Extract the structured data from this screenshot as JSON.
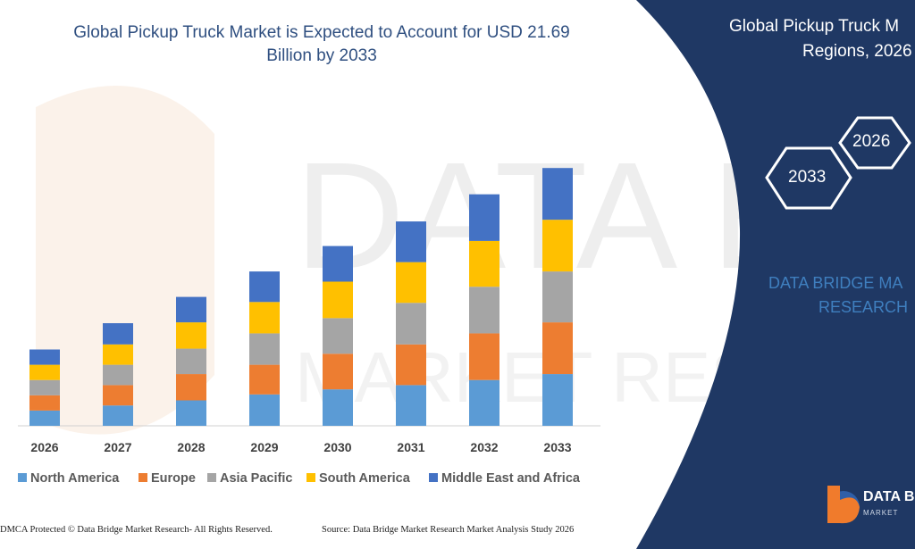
{
  "title": "Global Pickup Truck Market is Expected to Account for USD 21.69 Billion by 2033",
  "title_line1": "Global Pickup Truck Market is Expected to Account for USD 21.69",
  "title_line2": "Billion by 2033",
  "side_panel": {
    "title_line1": "Global Pickup Truck M",
    "title_line2": "Regions, 2026",
    "hex_year_a": "2026",
    "hex_year_b": "2033",
    "brand_line1": "DATA BRIDGE MA",
    "brand_line2": "RESEARCH",
    "logo_text": "DATA B",
    "logo_sub": "MARKET"
  },
  "footer": {
    "copyright": "DMCA Protected © Data Bridge Market Research-  All Rights Reserved.",
    "source": "Source: Data Bridge Market Research  Market Analysis Study 2026"
  },
  "colors": {
    "North America": "#5b9bd5",
    "Europe": "#ed7d31",
    "Asia Pacific": "#a5a5a5",
    "South America": "#ffc000",
    "Middle East and Africa": "#4472c4",
    "panel": "#1f3864",
    "title": "#2f4f80"
  },
  "chart_data": {
    "type": "bar",
    "stacked": true,
    "categories": [
      "2026",
      "2027",
      "2028",
      "2029",
      "2030",
      "2031",
      "2032",
      "2033"
    ],
    "series": [
      {
        "name": "North America",
        "values": [
          18,
          24,
          30,
          37,
          43,
          48,
          54,
          61
        ]
      },
      {
        "name": "Europe",
        "values": [
          18,
          24,
          31,
          35,
          42,
          48,
          55,
          61
        ]
      },
      {
        "name": "Asia Pacific",
        "values": [
          18,
          24,
          30,
          37,
          42,
          49,
          55,
          60
        ]
      },
      {
        "name": "South America",
        "values": [
          18,
          24,
          31,
          37,
          43,
          48,
          54,
          61
        ]
      },
      {
        "name": "Middle East and Africa",
        "values": [
          18,
          25,
          30,
          36,
          42,
          48,
          55,
          61
        ]
      }
    ],
    "legend_position": "bottom",
    "grid": false,
    "ylim": [
      0,
      320
    ]
  }
}
